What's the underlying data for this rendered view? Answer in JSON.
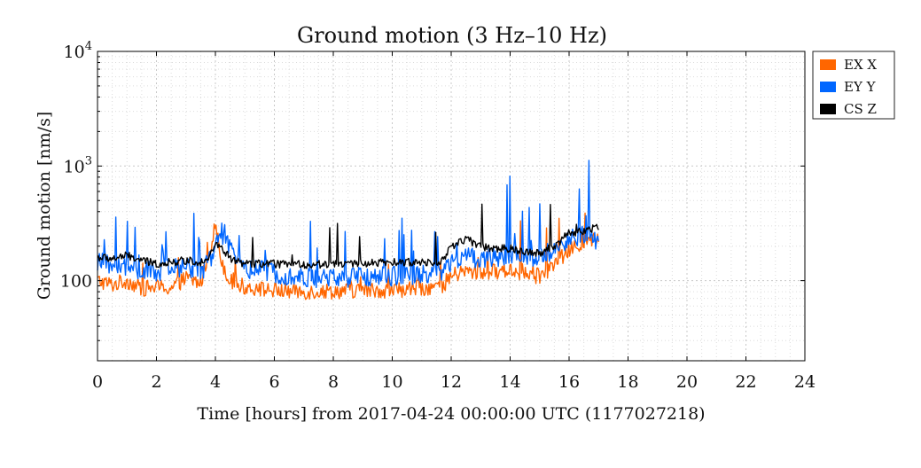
{
  "chart_data": {
    "type": "line",
    "title_main": "Ground motion ",
    "title_range": "(3 Hz–10 Hz)",
    "xlabel": "Time [hours] from 2017-04-24 00:00:00 UTC (1177027218)",
    "ylabel": "Ground motion [nm/s]",
    "xlim": [
      0,
      24
    ],
    "ylim": [
      20,
      10000
    ],
    "yscale": "log",
    "grid": true,
    "legend_position": "outside-top-right",
    "x_tick_labels": [
      "0",
      "2",
      "4",
      "6",
      "8",
      "10",
      "12",
      "14",
      "16",
      "18",
      "20",
      "22",
      "24"
    ],
    "y_tick_labels": [
      {
        "value": 100,
        "base": "100",
        "exp": ""
      },
      {
        "value": 1000,
        "base": "10",
        "exp": "3"
      },
      {
        "value": 10000,
        "base": "10",
        "exp": "4"
      }
    ],
    "series": [
      {
        "name": "EX X",
        "color": "#ff6600",
        "keypoints": [
          [
            0.0,
            100
          ],
          [
            0.5,
            92
          ],
          [
            1.0,
            100
          ],
          [
            1.5,
            85
          ],
          [
            2.0,
            88
          ],
          [
            2.5,
            86
          ],
          [
            3.0,
            105
          ],
          [
            3.5,
            95
          ],
          [
            3.8,
            180
          ],
          [
            4.0,
            310
          ],
          [
            4.2,
            150
          ],
          [
            4.5,
            98
          ],
          [
            5.0,
            88
          ],
          [
            6.0,
            82
          ],
          [
            7.0,
            80
          ],
          [
            8.0,
            81
          ],
          [
            9.0,
            82
          ],
          [
            10.0,
            83
          ],
          [
            11.0,
            86
          ],
          [
            11.7,
            90
          ],
          [
            12.0,
            110
          ],
          [
            12.5,
            120
          ],
          [
            13.0,
            118
          ],
          [
            13.5,
            120
          ],
          [
            14.0,
            125
          ],
          [
            14.5,
            112
          ],
          [
            15.0,
            110
          ],
          [
            15.5,
            135
          ],
          [
            16.0,
            185
          ],
          [
            16.5,
            210
          ],
          [
            17.0,
            230
          ]
        ]
      },
      {
        "name": "EY Y",
        "color": "#0066ff",
        "keypoints": [
          [
            0.0,
            145
          ],
          [
            0.5,
            135
          ],
          [
            1.0,
            130
          ],
          [
            1.5,
            120
          ],
          [
            2.0,
            120
          ],
          [
            2.5,
            125
          ],
          [
            3.0,
            135
          ],
          [
            3.5,
            120
          ],
          [
            3.8,
            150
          ],
          [
            4.0,
            200
          ],
          [
            4.3,
            260
          ],
          [
            4.6,
            160
          ],
          [
            5.0,
            130
          ],
          [
            6.0,
            118
          ],
          [
            7.0,
            105
          ],
          [
            8.0,
            106
          ],
          [
            9.0,
            108
          ],
          [
            10.0,
            110
          ],
          [
            11.0,
            112
          ],
          [
            11.7,
            115
          ],
          [
            12.0,
            140
          ],
          [
            12.5,
            165
          ],
          [
            13.0,
            150
          ],
          [
            13.5,
            160
          ],
          [
            14.0,
            170
          ],
          [
            14.5,
            160
          ],
          [
            15.0,
            155
          ],
          [
            15.5,
            190
          ],
          [
            16.0,
            230
          ],
          [
            16.5,
            250
          ],
          [
            17.0,
            220
          ]
        ]
      },
      {
        "name": "CS Z",
        "color": "#000000",
        "keypoints": [
          [
            0.0,
            160
          ],
          [
            0.5,
            155
          ],
          [
            1.0,
            165
          ],
          [
            1.5,
            150
          ],
          [
            2.0,
            140
          ],
          [
            2.5,
            145
          ],
          [
            3.0,
            150
          ],
          [
            3.5,
            145
          ],
          [
            3.8,
            165
          ],
          [
            4.0,
            210
          ],
          [
            4.3,
            180
          ],
          [
            4.6,
            150
          ],
          [
            5.0,
            140
          ],
          [
            6.0,
            140
          ],
          [
            7.0,
            138
          ],
          [
            8.0,
            140
          ],
          [
            9.0,
            142
          ],
          [
            10.0,
            144
          ],
          [
            11.0,
            145
          ],
          [
            11.7,
            148
          ],
          [
            12.0,
            200
          ],
          [
            12.5,
            230
          ],
          [
            13.0,
            200
          ],
          [
            13.5,
            190
          ],
          [
            14.0,
            190
          ],
          [
            14.5,
            180
          ],
          [
            15.0,
            175
          ],
          [
            15.5,
            200
          ],
          [
            16.0,
            260
          ],
          [
            16.5,
            270
          ],
          [
            17.0,
            300
          ]
        ]
      }
    ]
  }
}
